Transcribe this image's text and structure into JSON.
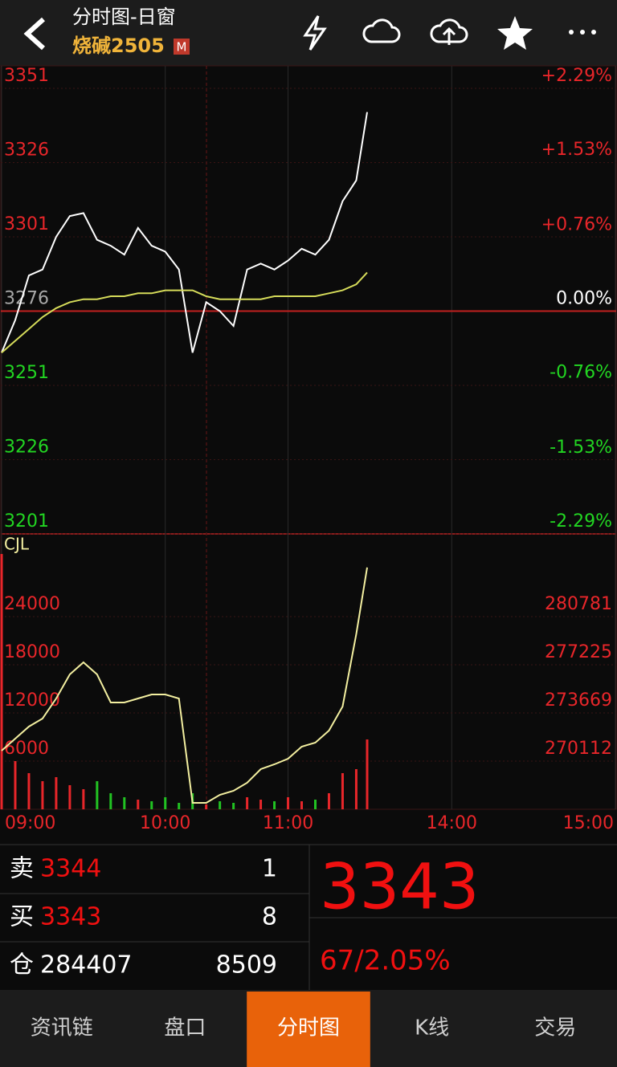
{
  "header": {
    "title": "分时图-日窗",
    "subtitle": "烧碱2505",
    "badge": "M"
  },
  "chart_data": [
    {
      "type": "line",
      "x": [
        0,
        5,
        10,
        15,
        20,
        25,
        30,
        35,
        40,
        45,
        50,
        55,
        60,
        65,
        70,
        75,
        80,
        85,
        90,
        95,
        100,
        105,
        110,
        115,
        120,
        125,
        130,
        134
      ],
      "xlim": [
        0,
        225
      ],
      "ylim": [
        3201,
        3351
      ],
      "yticks": [
        3351,
        3326,
        3301,
        3276,
        3251,
        3226,
        3201
      ],
      "y2lim": [
        -2.29,
        2.29
      ],
      "y2ticks": [
        {
          "value": 2.29,
          "label": "+2.29%"
        },
        {
          "value": 1.53,
          "label": "+1.53%"
        },
        {
          "value": 0.76,
          "label": "+0.76%"
        },
        {
          "value": 0,
          "label": "0.00%"
        },
        {
          "value": -0.76,
          "label": "-0.76%"
        },
        {
          "value": -1.53,
          "label": "-1.53%"
        },
        {
          "value": -2.29,
          "label": "-2.29%"
        }
      ],
      "series": [
        {
          "color": "#ffffff",
          "values": [
            3262,
            3273,
            3288,
            3290,
            3301,
            3308,
            3309,
            3300,
            3298,
            3295,
            3304,
            3298,
            3296,
            3290,
            3262,
            3279,
            3276,
            3271,
            3290,
            3292,
            3290,
            3293,
            3297,
            3295,
            3300,
            3313,
            3320,
            3343
          ]
        },
        {
          "color": "#d6dc5a",
          "values": [
            3262,
            3266,
            3270,
            3274,
            3277,
            3279,
            3280,
            3280,
            3281,
            3281,
            3282,
            3282,
            3283,
            3283,
            3283,
            3281,
            3280,
            3280,
            3280,
            3280,
            3281,
            3281,
            3281,
            3281,
            3282,
            3283,
            3285,
            3289
          ]
        }
      ]
    },
    {
      "type": "bar",
      "label": "CJL",
      "x": [
        0,
        5,
        10,
        15,
        20,
        25,
        30,
        35,
        40,
        45,
        50,
        55,
        60,
        65,
        70,
        75,
        80,
        85,
        90,
        95,
        100,
        105,
        110,
        115,
        120,
        125,
        130,
        134
      ],
      "xlim": [
        0,
        225
      ],
      "xticks": [
        {
          "value": 0,
          "label": "09:00"
        },
        {
          "value": 60,
          "label": "10:00"
        },
        {
          "value": 105,
          "label": "11:00"
        },
        {
          "value": 165,
          "label": "14:00"
        },
        {
          "value": 225,
          "label": "15:00"
        }
      ],
      "ylim": [
        0,
        34100
      ],
      "yticks": [
        6000,
        12000,
        18000,
        24000
      ],
      "y2lim": [
        266556,
        286767
      ],
      "y2ticks": [
        270112,
        273669,
        277225,
        280781
      ],
      "up_color": "#e8262a",
      "down_color": "#22c322",
      "series": [
        {
          "type": "bar",
          "values": [
            31800,
            6000,
            4500,
            3500,
            4000,
            3000,
            2500,
            3500,
            2000,
            1500,
            1200,
            1000,
            1500,
            800,
            2000,
            600,
            1000,
            800,
            1500,
            1200,
            1000,
            1500,
            1000,
            1200,
            2000,
            4500,
            5000,
            8700
          ]
        },
        {
          "type": "line",
          "axis": "y2",
          "color": "#f3efa0",
          "values": [
            270883,
            271772,
            272661,
            273254,
            274735,
            276513,
            277402,
            276513,
            274439,
            274439,
            274735,
            275032,
            275032,
            274735,
            267030,
            267030,
            267623,
            267919,
            268512,
            269520,
            269875,
            270290,
            271179,
            271475,
            272364,
            274143,
            279477,
            284407
          ]
        }
      ]
    }
  ],
  "quote": {
    "rows": [
      {
        "label": "卖",
        "price": 3344,
        "volume": 1
      },
      {
        "label": "买",
        "price": 3343,
        "volume": 8
      },
      {
        "label": "仓",
        "price": 284407,
        "volume": 8509
      }
    ],
    "last": 3343,
    "change": "67/2.05%"
  },
  "tabs": {
    "items": [
      "资讯链",
      "盘口",
      "分时图",
      "K线",
      "交易"
    ],
    "active": 2
  }
}
